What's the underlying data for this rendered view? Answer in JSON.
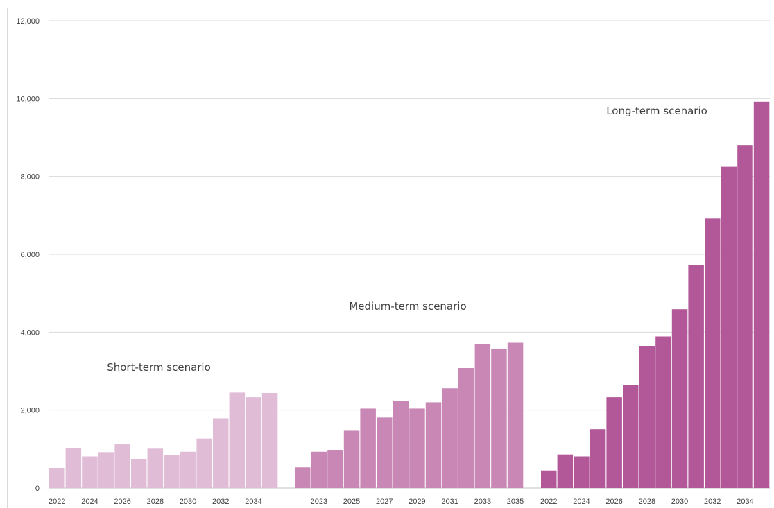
{
  "chart_data": {
    "type": "bar",
    "title": "",
    "xlabel": "",
    "ylabel": "",
    "ylim": [
      0,
      12000
    ],
    "yticks": [
      0,
      2000,
      4000,
      6000,
      8000,
      10000,
      12000
    ],
    "ytick_labels": [
      "0",
      "2,000",
      "4,000",
      "6,000",
      "8,000",
      "10,000",
      "12,000"
    ],
    "grid": true,
    "colors": {
      "short": "#e0bcd6",
      "medium": "#c987b6",
      "long": "#b25797",
      "grid": "#d9d9d9",
      "text": "#404040"
    },
    "groups": [
      {
        "name": "Short-term scenario",
        "x": [
          2022,
          2023,
          2024,
          2025,
          2026,
          2027,
          2028,
          2029,
          2030,
          2031,
          2032,
          2033,
          2034,
          2035
        ],
        "values": [
          500,
          1030,
          810,
          920,
          1120,
          740,
          1010,
          850,
          930,
          1270,
          1790,
          2450,
          2330,
          2440
        ],
        "tick_labels": [
          "2022",
          "2024",
          "2026",
          "2028",
          "2030",
          "2032",
          "2034"
        ]
      },
      {
        "name": "Medium-term scenario",
        "x": [
          2022,
          2023,
          2024,
          2025,
          2026,
          2027,
          2028,
          2029,
          2030,
          2031,
          2032,
          2033,
          2034,
          2035
        ],
        "values": [
          530,
          930,
          970,
          1470,
          2040,
          1810,
          2230,
          2040,
          2200,
          2560,
          3080,
          3700,
          3580,
          3730
        ],
        "tick_labels": [
          "2023",
          "2025",
          "2027",
          "2029",
          "2031",
          "2033",
          "2035"
        ]
      },
      {
        "name": "Long-term scenario",
        "x": [
          2022,
          2023,
          2024,
          2025,
          2026,
          2027,
          2028,
          2029,
          2030,
          2031,
          2032,
          2033,
          2034,
          2035
        ],
        "values": [
          450,
          860,
          810,
          1510,
          2330,
          2650,
          3650,
          3890,
          4590,
          5730,
          6920,
          8250,
          8810,
          9920
        ],
        "tick_labels": [
          "2022",
          "2024",
          "2026",
          "2028",
          "2030",
          "2032",
          "2034"
        ]
      }
    ]
  }
}
